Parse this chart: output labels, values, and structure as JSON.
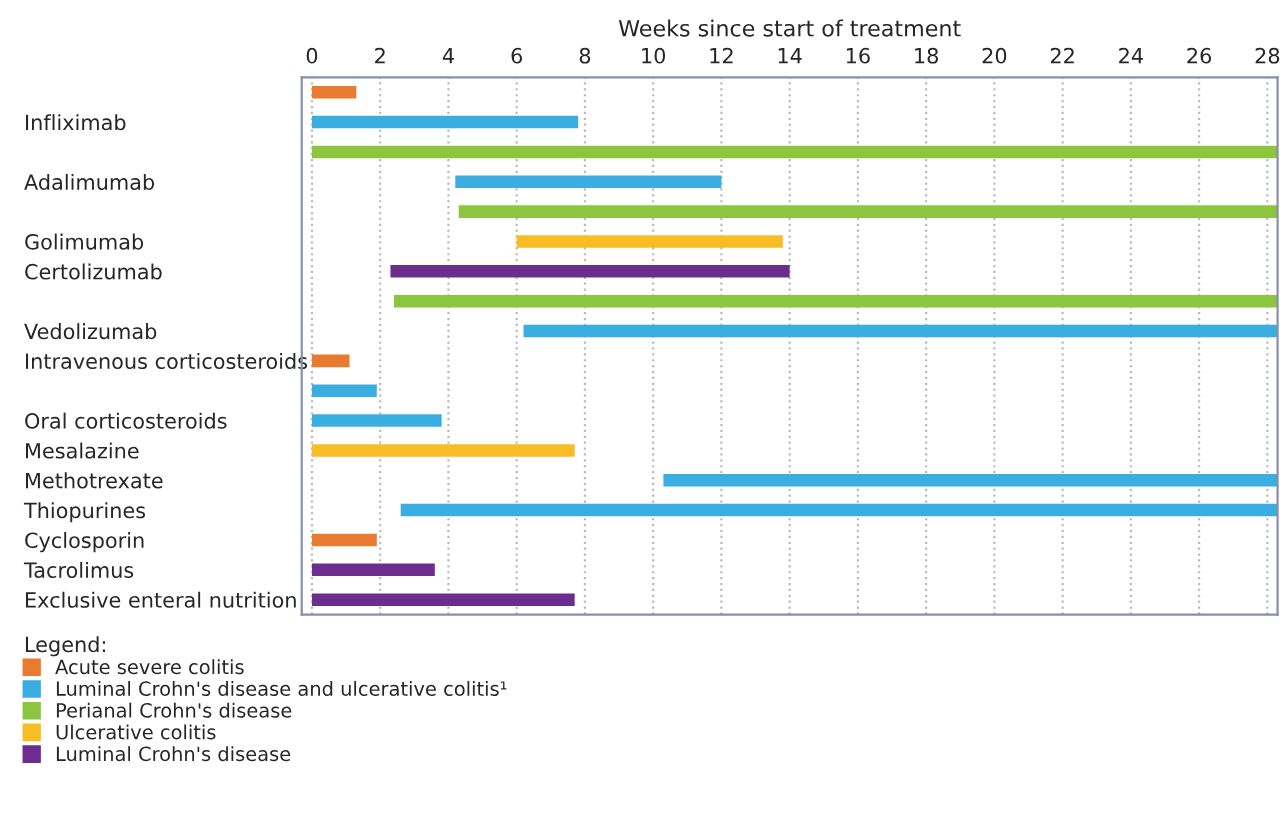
{
  "chart_data": {
    "type": "bar",
    "orientation": "horizontal",
    "xlabel": "Weeks since start of treatment",
    "legend_title": "Legend:",
    "legend": "bottom left",
    "grid": "x",
    "categories": [
      null,
      "Infliximab",
      null,
      "Adalimumab",
      null,
      "Golimumab",
      "Certolizumab",
      null,
      "Vedolizumab",
      "Intravenous corticosteroids",
      null,
      "Oral corticosteroids",
      "Mesalazine",
      "Methotrexate",
      "Thiopurines",
      "Cyclosporin",
      "Tacrolimus",
      "Exclusive enteral nutrition"
    ],
    "xlim": [
      -0.3,
      28.3
    ],
    "xticks": [
      0,
      2,
      4,
      6,
      8,
      10,
      12,
      14,
      16,
      18,
      20,
      22,
      24,
      26,
      28
    ],
    "series": [
      {
        "name": "Acute severe colitis",
        "color": "#e87b2f",
        "base": [
          0,
          null,
          null,
          null,
          null,
          null,
          null,
          null,
          null,
          0,
          null,
          null,
          null,
          null,
          null,
          0,
          null,
          null
        ],
        "values": [
          1.3,
          null,
          null,
          null,
          null,
          null,
          null,
          null,
          null,
          1.1,
          null,
          null,
          null,
          null,
          null,
          1.9,
          null,
          null
        ]
      },
      {
        "name": "Luminal Crohn's disease and ulcerative colitis¹",
        "color": "#3aaee0",
        "base": [
          null,
          0,
          null,
          4.2,
          null,
          null,
          null,
          null,
          6.2,
          null,
          0,
          0,
          null,
          10.3,
          2.6,
          null,
          null,
          null
        ],
        "values": [
          null,
          7.8,
          null,
          7.8,
          null,
          null,
          null,
          null,
          22.1,
          null,
          1.9,
          3.8,
          null,
          18.0,
          25.7,
          null,
          null,
          null
        ]
      },
      {
        "name": "Perianal Crohn's disease",
        "color": "#8cc63f",
        "base": [
          null,
          null,
          0,
          null,
          4.3,
          null,
          null,
          2.4,
          null,
          null,
          null,
          null,
          null,
          null,
          null,
          null,
          null,
          null
        ],
        "values": [
          null,
          null,
          28.3,
          null,
          24.0,
          null,
          null,
          25.9,
          null,
          null,
          null,
          null,
          null,
          null,
          null,
          null,
          null,
          null
        ]
      },
      {
        "name": "Ulcerative colitis",
        "color": "#f7bd25",
        "base": [
          null,
          null,
          null,
          null,
          null,
          6.0,
          null,
          null,
          null,
          null,
          null,
          null,
          0,
          null,
          null,
          null,
          null,
          null
        ],
        "values": [
          null,
          null,
          null,
          null,
          null,
          7.8,
          null,
          null,
          null,
          null,
          null,
          null,
          7.7,
          null,
          null,
          null,
          null,
          null
        ]
      },
      {
        "name": "Luminal Crohn's disease",
        "color": "#6b2d8e",
        "base": [
          null,
          null,
          null,
          null,
          null,
          null,
          2.3,
          null,
          null,
          null,
          null,
          null,
          null,
          null,
          null,
          null,
          0,
          0
        ],
        "values": [
          null,
          null,
          null,
          null,
          null,
          null,
          11.7,
          null,
          null,
          null,
          null,
          null,
          null,
          null,
          null,
          null,
          3.6,
          7.7
        ]
      }
    ]
  }
}
